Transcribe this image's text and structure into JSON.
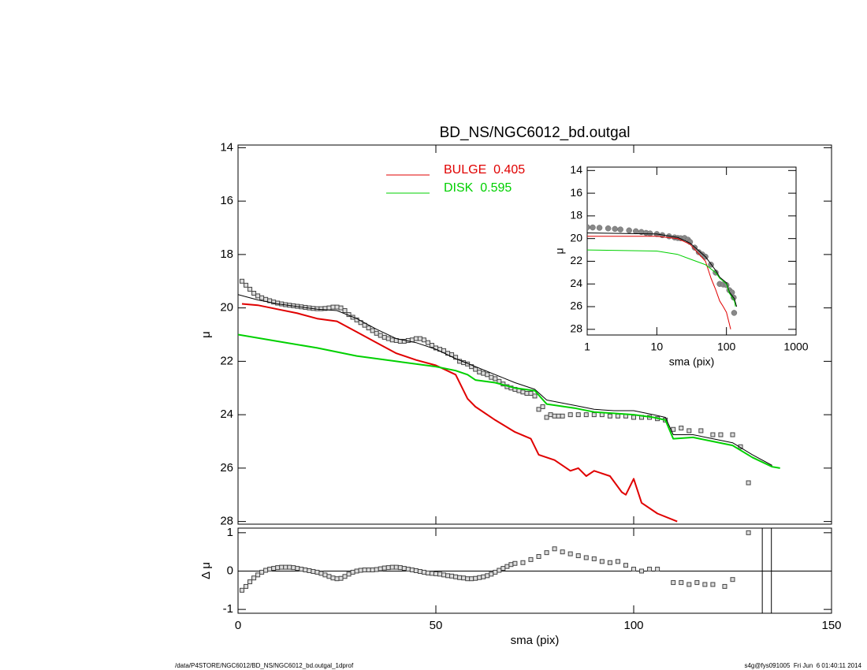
{
  "chart_data": [
    {
      "type": "line",
      "title": "BD_NS/NGC6012_bd.outgal",
      "y_label": "μ",
      "xlim": [
        0,
        150
      ],
      "ylim": [
        13.9,
        28.1
      ],
      "y_inverted": true,
      "xticks": [
        0,
        50,
        100,
        150
      ],
      "yticks": [
        14,
        16,
        18,
        20,
        22,
        24,
        26,
        28
      ],
      "series": [
        {
          "style": "points",
          "marker": "square",
          "color": "#444444",
          "x": [
            1,
            2,
            3,
            4,
            5,
            6,
            7,
            8,
            9,
            10,
            11,
            12,
            13,
            14,
            15,
            16,
            17,
            18,
            19,
            20,
            21,
            22,
            23,
            24,
            25,
            26,
            27,
            28,
            29,
            30,
            31,
            32,
            33,
            34,
            35,
            36,
            37,
            38,
            39,
            40,
            41,
            42,
            43,
            44,
            45,
            46,
            47,
            48,
            49,
            50,
            51,
            52,
            53,
            54,
            55,
            56,
            57,
            58,
            59,
            60,
            61,
            62,
            63,
            64,
            65,
            66,
            67,
            68,
            69,
            70,
            71,
            72,
            73,
            74,
            75,
            76,
            77,
            78,
            79,
            80,
            81,
            82,
            84,
            86,
            88,
            90,
            92,
            94,
            96,
            98,
            100,
            102,
            104,
            106,
            108,
            110,
            112,
            114,
            117,
            120,
            122,
            125,
            127,
            129
          ],
          "values": [
            19.0,
            19.15,
            19.3,
            19.45,
            19.55,
            19.62,
            19.68,
            19.73,
            19.78,
            19.82,
            19.85,
            19.88,
            19.9,
            19.92,
            19.94,
            19.96,
            19.98,
            20.0,
            20.02,
            20.03,
            20.03,
            20.02,
            20.0,
            19.97,
            19.97,
            20.0,
            20.1,
            20.25,
            20.35,
            20.45,
            20.55,
            20.65,
            20.75,
            20.85,
            20.95,
            21.03,
            21.1,
            21.15,
            21.2,
            21.22,
            21.25,
            21.25,
            21.22,
            21.2,
            21.15,
            21.15,
            21.2,
            21.3,
            21.4,
            21.5,
            21.55,
            21.6,
            21.7,
            21.75,
            21.85,
            22.0,
            22.05,
            22.1,
            22.2,
            22.3,
            22.4,
            22.45,
            22.5,
            22.6,
            22.65,
            22.75,
            22.85,
            22.95,
            23.0,
            23.05,
            23.1,
            23.15,
            23.2,
            23.2,
            23.3,
            23.8,
            23.7,
            24.1,
            24.0,
            24.05,
            24.05,
            24.05,
            24.0,
            24.0,
            24.0,
            24.0,
            24.0,
            24.05,
            24.05,
            24.05,
            24.1,
            24.1,
            24.1,
            24.15,
            24.2,
            24.55,
            24.5,
            24.6,
            24.6,
            24.75,
            24.75,
            24.75,
            25.2,
            26.55
          ]
        },
        {
          "style": "line",
          "color": "#000000",
          "width": 1,
          "x": [
            0,
            5,
            10,
            15,
            20,
            25,
            30,
            35,
            40,
            45,
            50,
            55,
            60,
            65,
            70,
            75,
            78,
            85,
            90,
            95,
            100,
            105,
            108,
            110,
            115,
            120,
            125,
            130,
            135
          ],
          "values": [
            19.5,
            19.7,
            19.85,
            19.95,
            20.05,
            20.1,
            20.4,
            20.8,
            21.15,
            21.3,
            21.55,
            21.9,
            22.2,
            22.5,
            22.8,
            23.05,
            23.45,
            23.65,
            23.8,
            23.85,
            23.85,
            24.0,
            24.1,
            24.75,
            24.75,
            24.9,
            25.05,
            25.5,
            25.9
          ]
        },
        {
          "name": "BULGE  0.405",
          "style": "line",
          "color": "#e00000",
          "width": 2,
          "x": [
            1,
            5,
            10,
            15,
            20,
            25,
            30,
            35,
            40,
            45,
            50,
            55,
            58,
            60,
            65,
            70,
            74,
            76,
            80,
            84,
            86,
            88,
            90,
            94,
            97,
            98,
            100,
            102,
            106,
            111
          ],
          "values": [
            19.85,
            19.9,
            20.05,
            20.2,
            20.4,
            20.5,
            20.9,
            21.3,
            21.7,
            21.95,
            22.15,
            22.5,
            23.4,
            23.7,
            24.2,
            24.65,
            24.9,
            25.5,
            25.7,
            26.1,
            26.0,
            26.3,
            26.1,
            26.3,
            26.9,
            27.0,
            26.4,
            27.3,
            27.7,
            28.0
          ]
        },
        {
          "name": "DISK  0.595",
          "style": "line",
          "color": "#00d000",
          "width": 2,
          "x": [
            0,
            10,
            20,
            30,
            40,
            50,
            55,
            58,
            60,
            65,
            70,
            75,
            78,
            85,
            90,
            95,
            100,
            105,
            108,
            110,
            115,
            120,
            125,
            130,
            135,
            137
          ],
          "values": [
            21.0,
            21.25,
            21.5,
            21.8,
            22.0,
            22.2,
            22.35,
            22.5,
            22.7,
            22.8,
            23.0,
            23.1,
            23.6,
            23.75,
            23.9,
            23.95,
            24.0,
            24.1,
            24.2,
            24.9,
            24.85,
            25.0,
            25.15,
            25.6,
            25.95,
            26.0
          ]
        }
      ]
    },
    {
      "type": "scatter",
      "y_label": "Δ μ",
      "x_label": "sma (pix)",
      "xlim": [
        0,
        150
      ],
      "ylim": [
        -1.1,
        1.12
      ],
      "reference_line": 0,
      "xticks": [
        0,
        50,
        100,
        150
      ],
      "yticks": [
        -1,
        0,
        1
      ],
      "vlines": [
        132.5,
        134.8
      ],
      "series": [
        {
          "style": "points",
          "marker": "square",
          "color": "#444444",
          "x": [
            1,
            2,
            3,
            4,
            5,
            6,
            7,
            8,
            9,
            10,
            11,
            12,
            13,
            14,
            15,
            16,
            17,
            18,
            19,
            20,
            21,
            22,
            23,
            24,
            25,
            26,
            27,
            28,
            29,
            30,
            31,
            32,
            33,
            34,
            35,
            36,
            37,
            38,
            39,
            40,
            41,
            42,
            43,
            44,
            45,
            46,
            47,
            48,
            49,
            50,
            51,
            52,
            53,
            54,
            55,
            56,
            57,
            58,
            59,
            60,
            61,
            62,
            63,
            64,
            65,
            66,
            67,
            68,
            69,
            70,
            72,
            74,
            76,
            78,
            80,
            82,
            84,
            86,
            88,
            90,
            92,
            94,
            96,
            98,
            100,
            102,
            104,
            106,
            110,
            112,
            114,
            116,
            118,
            120,
            123,
            125,
            129
          ],
          "values": [
            -0.5,
            -0.4,
            -0.28,
            -0.18,
            -0.1,
            -0.03,
            0.02,
            0.05,
            0.07,
            0.09,
            0.1,
            0.1,
            0.1,
            0.09,
            0.07,
            0.05,
            0.03,
            0.01,
            -0.01,
            -0.03,
            -0.06,
            -0.1,
            -0.14,
            -0.18,
            -0.2,
            -0.19,
            -0.14,
            -0.08,
            -0.03,
            0.0,
            0.02,
            0.03,
            0.03,
            0.03,
            0.04,
            0.06,
            0.08,
            0.09,
            0.1,
            0.1,
            0.09,
            0.07,
            0.05,
            0.03,
            0.01,
            -0.01,
            -0.03,
            -0.05,
            -0.06,
            -0.07,
            -0.08,
            -0.1,
            -0.12,
            -0.13,
            -0.15,
            -0.17,
            -0.18,
            -0.2,
            -0.2,
            -0.19,
            -0.17,
            -0.15,
            -0.12,
            -0.08,
            -0.03,
            0.02,
            0.07,
            0.12,
            0.17,
            0.2,
            0.22,
            0.3,
            0.38,
            0.48,
            0.58,
            0.5,
            0.45,
            0.4,
            0.35,
            0.32,
            0.25,
            0.22,
            0.25,
            0.15,
            0.05,
            0.0,
            0.05,
            0.05,
            -0.3,
            -0.3,
            -0.35,
            -0.3,
            -0.35,
            -0.35,
            -0.4,
            -0.22,
            1.0
          ]
        }
      ]
    },
    {
      "type": "line",
      "y_label": "μ",
      "x_label": "sma (pix)",
      "log_x": true,
      "xlim": [
        1,
        1000
      ],
      "ylim": [
        13.7,
        28.5
      ],
      "y_inverted": true,
      "xticks": [
        1,
        10,
        100,
        1000
      ],
      "yticks": [
        14,
        16,
        18,
        20,
        22,
        24,
        26,
        28
      ],
      "series": [
        {
          "style": "points",
          "marker": "circle",
          "color": "#888888",
          "x": [
            1,
            1.2,
            1.5,
            2,
            2.5,
            3,
            4,
            5,
            6,
            7,
            8,
            10,
            12,
            15,
            18,
            20,
            22,
            25,
            28,
            30,
            35,
            40,
            45,
            50,
            60,
            70,
            80,
            90,
            100,
            110,
            120,
            127,
            129
          ],
          "values": [
            19.0,
            19.02,
            19.05,
            19.1,
            19.15,
            19.2,
            19.28,
            19.35,
            19.42,
            19.5,
            19.55,
            19.6,
            19.7,
            19.8,
            19.9,
            19.95,
            19.97,
            19.95,
            20.1,
            20.3,
            20.8,
            21.2,
            21.4,
            21.6,
            22.3,
            23.0,
            24.0,
            24.05,
            24.1,
            24.55,
            24.75,
            25.2,
            26.55
          ]
        },
        {
          "style": "line",
          "color": "#000000",
          "width": 1,
          "x": [
            1,
            10,
            20,
            30,
            50,
            70,
            80,
            100,
            110,
            130,
            140
          ],
          "values": [
            19.5,
            19.6,
            19.9,
            20.4,
            21.6,
            22.8,
            23.4,
            23.9,
            24.7,
            25.3,
            26.0
          ]
        },
        {
          "style": "line",
          "color": "#e00000",
          "width": 1,
          "x": [
            1,
            10,
            20,
            30,
            50,
            60,
            70,
            80,
            90,
            100,
            110,
            115
          ],
          "values": [
            19.8,
            19.8,
            20.0,
            20.5,
            22.0,
            23.5,
            24.5,
            25.5,
            26.0,
            26.5,
            27.5,
            28.0
          ]
        },
        {
          "style": "line",
          "color": "#00d000",
          "width": 1,
          "x": [
            1,
            10,
            20,
            30,
            50,
            70,
            80,
            100,
            110,
            130,
            135
          ],
          "values": [
            21.0,
            21.1,
            21.4,
            21.8,
            22.3,
            23.0,
            23.5,
            24.0,
            24.8,
            25.5,
            26.0
          ]
        }
      ]
    }
  ],
  "footer": {
    "left": "/data/P4STORE/NGC6012/BD_NS/NGC6012_bd.outgal_1dprof",
    "right": "s4g@fys091005  Fri Jun  6 01:40:11 2014"
  }
}
